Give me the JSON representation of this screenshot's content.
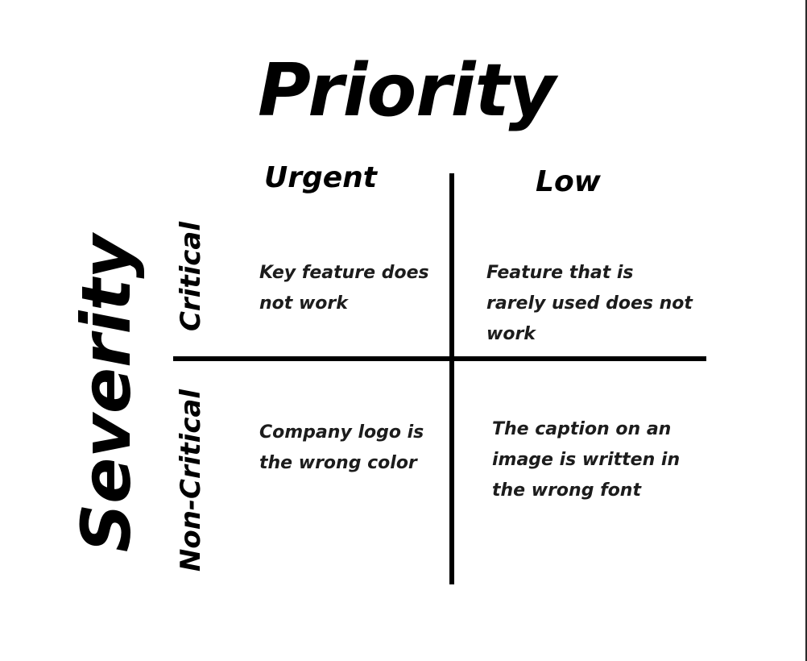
{
  "diagram": {
    "title": "Priority",
    "side_title": "Severity",
    "columns": {
      "left": "Urgent",
      "right": "Low"
    },
    "rows": {
      "top": "Critical",
      "bottom": "Non-Critical"
    },
    "cells": {
      "urgent_critical": "Key feature does not work",
      "low_critical": "Feature that is rarely used does not work",
      "urgent_noncritical": "Company logo is the wrong color",
      "low_noncritical": "The caption on an image is written in the wrong font"
    }
  }
}
